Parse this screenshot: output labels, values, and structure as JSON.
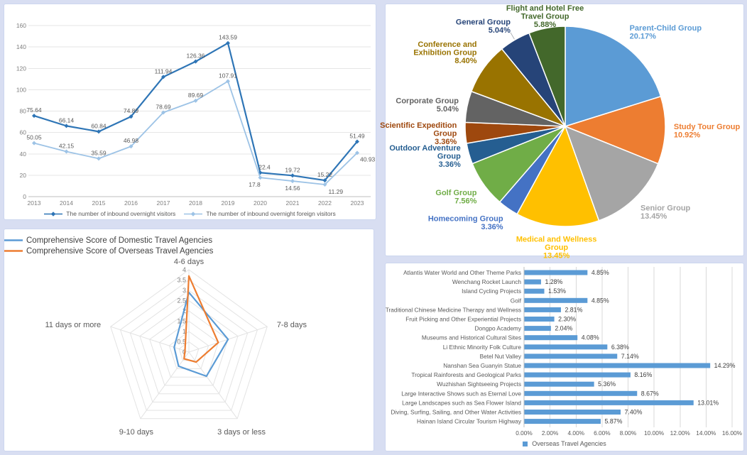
{
  "page": {
    "background_color": "#D8DEF2",
    "panel_border_color": "#ccd6ef"
  },
  "chart_data": [
    {
      "id": "inbound-visitors-line",
      "type": "line",
      "x": [
        "2013",
        "2014",
        "2015",
        "2016",
        "2017",
        "2018",
        "2019",
        "2020",
        "2021",
        "2022",
        "2023"
      ],
      "ylim": [
        0,
        160
      ],
      "ytick_step": 20,
      "ytick_labels": [
        "0",
        "20",
        "40",
        "60",
        "80",
        "100",
        "120",
        "140",
        "160"
      ],
      "grid": true,
      "legend_position": "bottom",
      "series": [
        {
          "name": "The number of inbound overnight visitors",
          "color": "#2E75B6",
          "values": [
            75.64,
            66.14,
            60.84,
            74.89,
            111.94,
            126.36,
            143.59,
            22.4,
            19.72,
            15.22,
            51.49
          ],
          "labels": [
            "75.64",
            "66.14",
            "60.84",
            "74.89",
            "111.94",
            "126.36",
            "143.59",
            "22.4",
            "19.72",
            "15.22",
            "51.49"
          ]
        },
        {
          "name": "The number of inbound overnight foreign visitors",
          "color": "#9DC3E6",
          "values": [
            50.05,
            42.15,
            35.59,
            46.98,
            78.69,
            89.69,
            107.91,
            17.8,
            14.56,
            11.29,
            40.93
          ],
          "labels": [
            "50.05",
            "42.15",
            "35.59",
            "46.98",
            "78.69",
            "89.69",
            "107.91",
            "17.8",
            "14.56",
            "11.29",
            "40.93"
          ]
        }
      ]
    },
    {
      "id": "travel-groups-pie",
      "type": "pie",
      "start_angle_deg": 0,
      "direction": "clockwise",
      "slices": [
        {
          "label": "Parent-Child Group",
          "label_lines": [
            "Parent-Child Group"
          ],
          "value": 20.17,
          "percent_label": "20.17%",
          "color": "#5B9BD5"
        },
        {
          "label": "Study Tour Group",
          "label_lines": [
            "Study Tour Group"
          ],
          "value": 10.92,
          "percent_label": "10.92%",
          "color": "#ED7D31"
        },
        {
          "label": "Senior Group",
          "label_lines": [
            "Senior Group"
          ],
          "value": 13.45,
          "percent_label": "13.45%",
          "color": "#A5A5A5"
        },
        {
          "label": "Medical and Wellness Group",
          "label_lines": [
            "Medical and Wellness",
            "Group"
          ],
          "value": 13.45,
          "percent_label": "13.45%",
          "color": "#FFC000"
        },
        {
          "label": "Homecoming Group",
          "label_lines": [
            "Homecoming Group"
          ],
          "value": 3.36,
          "percent_label": "3.36%",
          "color": "#4472C4"
        },
        {
          "label": "Golf Group",
          "label_lines": [
            "Golf Group"
          ],
          "value": 7.56,
          "percent_label": "7.56%",
          "color": "#70AD47"
        },
        {
          "label": "Outdoor Adventure Group",
          "label_lines": [
            "Outdoor Adventure",
            "Group"
          ],
          "value": 3.36,
          "percent_label": "3.36%",
          "color": "#255E91"
        },
        {
          "label": "Scientific Expedition Group",
          "label_lines": [
            "Scientific Expedition",
            "Group"
          ],
          "value": 3.36,
          "percent_label": "3.36%",
          "color": "#9E480E"
        },
        {
          "label": "Corporate Group",
          "label_lines": [
            "Corporate Group"
          ],
          "value": 5.04,
          "percent_label": "5.04%",
          "color": "#636363"
        },
        {
          "label": "Conference and Exhibition Group",
          "label_lines": [
            "Conference and",
            "Exhibition Group"
          ],
          "value": 8.4,
          "percent_label": "8.40%",
          "color": "#997300"
        },
        {
          "label": "General Group",
          "label_lines": [
            "General Group"
          ],
          "value": 5.04,
          "percent_label": "5.04%",
          "color": "#264478",
          "leader_line": true
        },
        {
          "label": "Flight and Hotel Free Travel Group",
          "label_lines": [
            "Flight and Hotel Free",
            "Travel Group"
          ],
          "value": 5.88,
          "percent_label": "5.88%",
          "color": "#43682B"
        }
      ]
    },
    {
      "id": "travel-agency-score-radar",
      "type": "radar",
      "axes": [
        "4-6 days",
        "7-8 days",
        "3 days or less",
        "9-10 days",
        "11 days or more"
      ],
      "rmax": 4,
      "rtick_step": 0.5,
      "rtick_labels": [
        "4",
        "3.5",
        "3",
        "2.5",
        "2",
        "1.5",
        "1",
        "0.5",
        "0"
      ],
      "legend_position": "top",
      "series": [
        {
          "name": "Comprehensive Score of Domestic Travel Agencies",
          "color": "#5B9BD5",
          "values": [
            2.9,
            2.0,
            1.45,
            0.85,
            0.75
          ]
        },
        {
          "name": "Comprehensive Score of Overseas Travel Agencies",
          "color": "#ED7D31",
          "values": [
            3.7,
            1.5,
            0.6,
            0.4,
            0.2
          ]
        }
      ]
    },
    {
      "id": "overseas-agencies-bar",
      "type": "bar_horizontal",
      "categories": [
        "Atlantis Water World and Other Theme Parks",
        "Wenchang Rocket Launch",
        "Island Cycling Projects",
        "Golf",
        "Traditional Chinese Medicine Therapy and Wellness",
        "Fruit Picking and Other Experiential Projects",
        "Dongpo Academy",
        "Museums and Historical Cultural Sites",
        "Li Ethnic Minority Folk Culture",
        "Betel Nut Valley",
        "Nanshan Sea Guanyin Statue",
        "Tropical Rainforests and Geological Parks",
        "Wuzhishan Sightseeing Projects",
        "Large Interactive Shows such as Eternal Love",
        "Large Landscapes such as Sea Flower Island",
        "Diving, Surfing, Sailing, and Other Water Activities",
        "Hainan Island Circular Tourism Highway"
      ],
      "values": [
        4.85,
        1.28,
        1.53,
        4.85,
        2.81,
        2.3,
        2.04,
        4.08,
        6.38,
        7.14,
        14.29,
        8.16,
        5.36,
        8.67,
        13.01,
        7.4,
        5.87
      ],
      "value_labels": [
        "4.85%",
        "1.28%",
        "1.53%",
        "4.85%",
        "2.81%",
        "2.30%",
        "2.04%",
        "4.08%",
        "6.38%",
        "7.14%",
        "14.29%",
        "8.16%",
        "5.36%",
        "8.67%",
        "13.01%",
        "7.40%",
        "5.87%"
      ],
      "xlim": [
        0,
        16
      ],
      "xtick_step": 2,
      "xtick_labels": [
        "0.00%",
        "2.00%",
        "4.00%",
        "6.00%",
        "8.00%",
        "10.00%",
        "12.00%",
        "14.00%",
        "16.00%"
      ],
      "bar_color": "#5B9BD5",
      "legend": "Overseas Travel Agencies",
      "grid": true
    }
  ]
}
